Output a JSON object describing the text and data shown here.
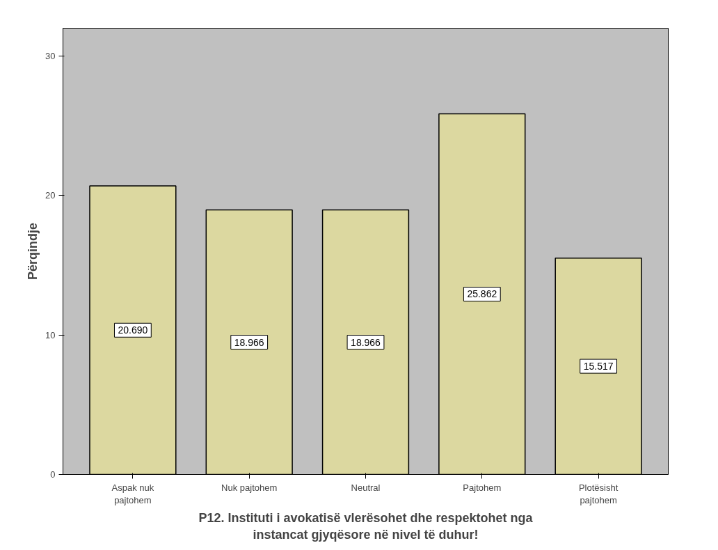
{
  "chart_data": {
    "type": "bar",
    "xlabel": "P12. Instituti i avokatisë vlerësohet dhe respektohet nga\ninstancat gjyqësore në nivel të duhur!",
    "ylabel": "Përqindje",
    "categories": [
      "Aspak nuk\npajtohem",
      "Nuk pajtohem",
      "Neutral",
      "Pajtohem",
      "Plotësisht\npajtohem"
    ],
    "values": [
      20.69,
      18.966,
      18.966,
      25.862,
      15.517
    ],
    "value_labels": [
      "20.690",
      "18.966",
      "18.966",
      "25.862",
      "15.517"
    ],
    "color": "#dcd8a0",
    "ylim": [
      0,
      32
    ],
    "yticks": [
      0,
      10,
      20,
      30
    ],
    "grid": false
  }
}
